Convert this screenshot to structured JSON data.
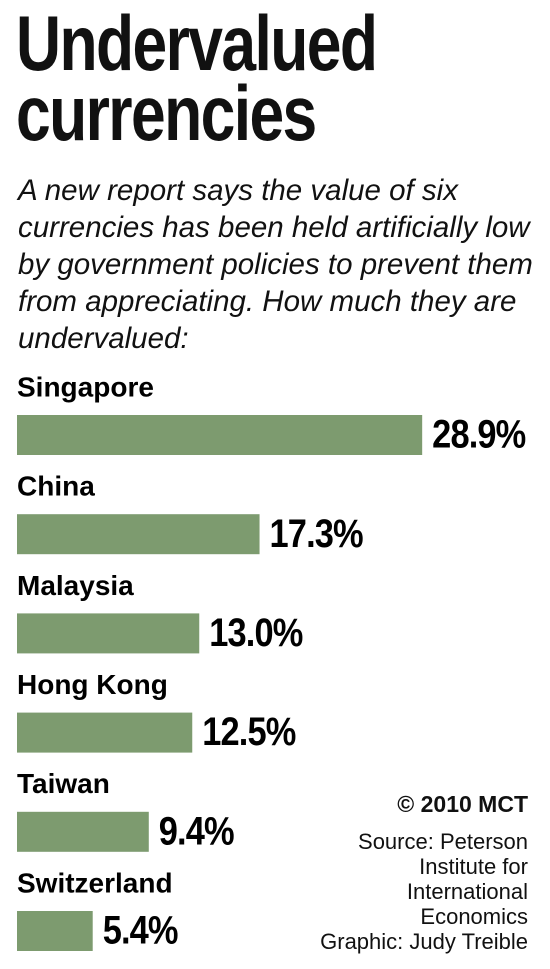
{
  "chart_data": {
    "type": "hbar",
    "title": "Undervalued currencies",
    "subtitle": "A new report says the value of six currencies has been held artificially low by government policies to prevent them from appreciating. How much they are undervalued:",
    "categories": [
      "Singapore",
      "China",
      "Malaysia",
      "Hong Kong",
      "Taiwan",
      "Switzerland"
    ],
    "values": [
      28.9,
      17.3,
      13.0,
      12.5,
      9.4,
      5.4
    ],
    "value_labels": [
      "28.9%",
      "17.3%",
      "13.0%",
      "12.5%",
      "9.4%",
      "5.4%"
    ],
    "color": "#7d9b6f",
    "credit": "© 2010 MCT",
    "source": "Source: Peterson Institute for International Economics",
    "graphic": "Graphic: Judy Treible"
  }
}
